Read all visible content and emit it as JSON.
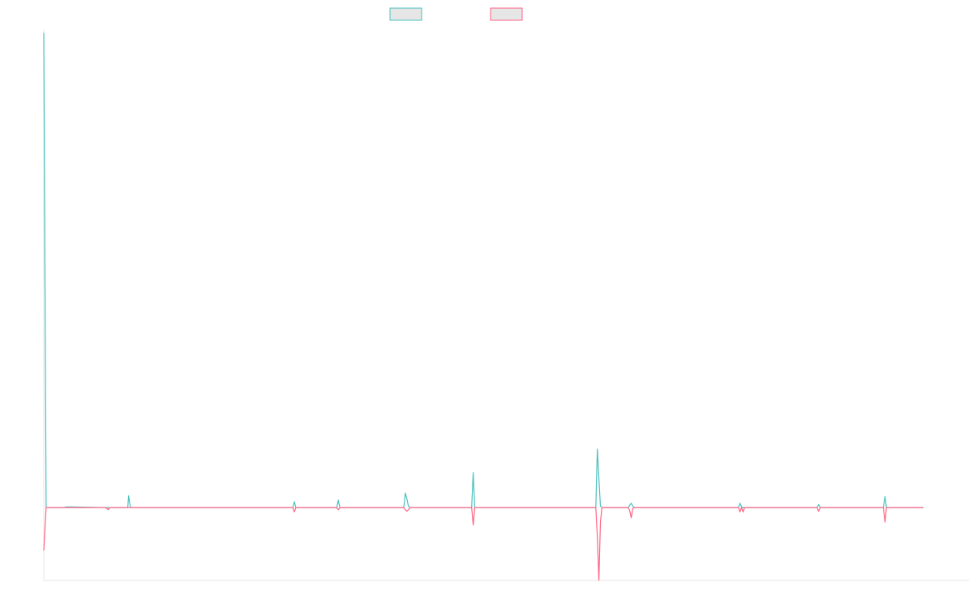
{
  "chart_data": {
    "type": "line",
    "title": "",
    "xlabel": "",
    "ylabel": "",
    "legend_position": "top-center",
    "grid": false,
    "show_tick_labels": false,
    "xlim": [
      0,
      1200
    ],
    "ylim": [
      -100,
      655
    ],
    "x": [
      0,
      3,
      26,
      30,
      80,
      84,
      85,
      109,
      110,
      112,
      113,
      186,
      188,
      323,
      325,
      327,
      380,
      382,
      384,
      467,
      469,
      471,
      473,
      475,
      555,
      557,
      559,
      716,
      718,
      720,
      722,
      724,
      758,
      760,
      762,
      764,
      766,
      901,
      903,
      905,
      907,
      909,
      1003,
      1005,
      1007,
      1089,
      1091,
      1093,
      1141
    ],
    "series": [
      {
        "color": "#4bc0c0",
        "values": [
          651,
          0,
          0,
          1,
          0,
          0,
          0,
          0,
          16,
          2,
          0,
          0,
          0,
          0,
          8,
          0,
          0,
          10,
          0,
          0,
          20,
          12,
          2,
          0,
          0,
          48,
          0,
          0,
          80,
          40,
          2,
          0,
          0,
          3,
          6,
          2,
          0,
          0,
          6,
          1,
          0,
          0,
          0,
          4,
          0,
          0,
          15,
          0,
          0
        ]
      },
      {
        "color": "#ff6384",
        "values": [
          -59,
          0,
          0,
          0,
          0,
          -3,
          0,
          0,
          0,
          0,
          0,
          0,
          0,
          0,
          -6,
          0,
          0,
          -3,
          0,
          0,
          -3,
          -5,
          -3,
          0,
          0,
          -24,
          0,
          0,
          -40,
          -100,
          -20,
          0,
          0,
          -4,
          -14,
          -1,
          0,
          0,
          -6,
          0,
          -6,
          0,
          0,
          -5,
          0,
          0,
          -20,
          0,
          0
        ]
      }
    ]
  }
}
